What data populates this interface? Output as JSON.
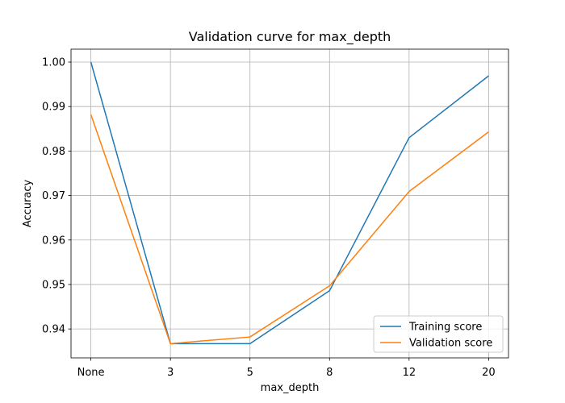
{
  "chart_data": {
    "type": "line",
    "title": "Validation curve for max_depth",
    "xlabel": "max_depth",
    "ylabel": "Accuracy",
    "categories": [
      "None",
      "3",
      "5",
      "8",
      "12",
      "20"
    ],
    "ylim": [
      0.9335,
      1.0029
    ],
    "yticks": [
      0.94,
      0.95,
      0.96,
      0.97,
      0.98,
      0.99,
      1.0
    ],
    "ytick_labels": [
      "0.94",
      "0.95",
      "0.96",
      "0.97",
      "0.98",
      "0.99",
      "1.00"
    ],
    "grid": true,
    "legend_position": "lower right",
    "series": [
      {
        "name": "Training score",
        "color": "#1f77b4",
        "values": [
          1.0,
          0.9367,
          0.9367,
          0.9486,
          0.983,
          0.9969
        ]
      },
      {
        "name": "Validation score",
        "color": "#ff7f0e",
        "values": [
          0.9882,
          0.9367,
          0.9382,
          0.9497,
          0.9709,
          0.9843
        ]
      }
    ]
  }
}
